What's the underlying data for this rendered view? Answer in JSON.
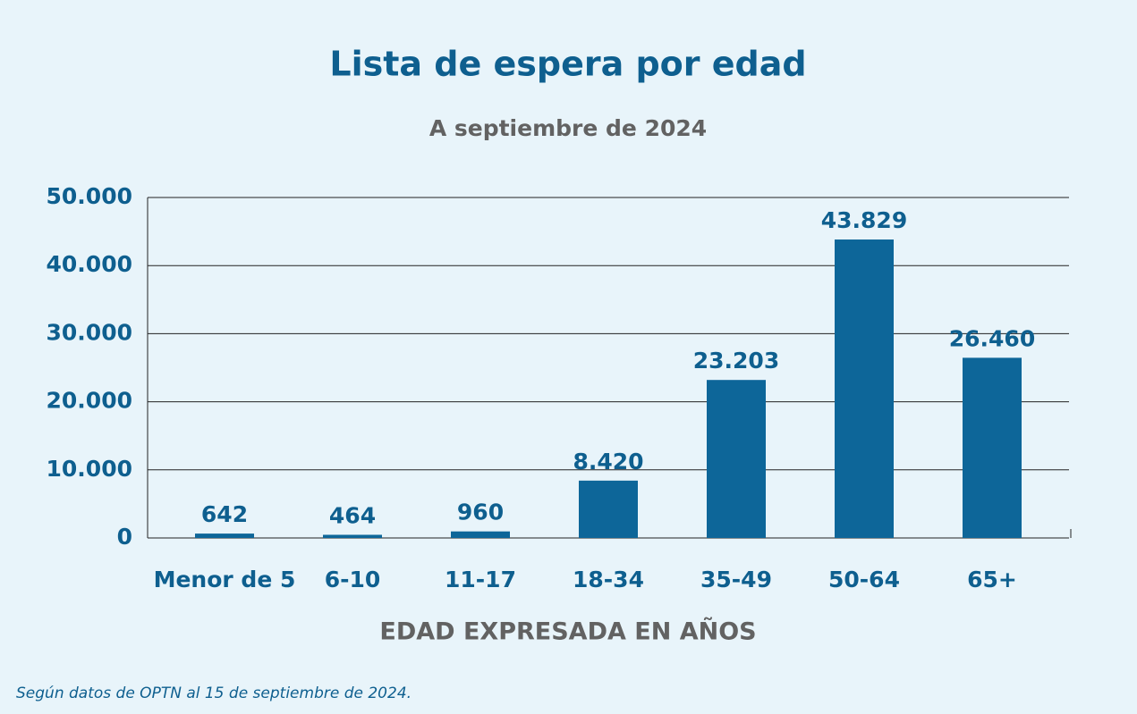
{
  "chart_data": {
    "type": "bar",
    "title": "Lista de espera por edad",
    "subtitle": "A septiembre de 2024",
    "x_label": "EDAD EXPRESADA EN AÑOS",
    "footnote": "Según datos de OPTN al 15 de septiembre de 2024.",
    "categories": [
      "Menor de 5",
      "6-10",
      "11-17",
      "18-34",
      "35-49",
      "50-64",
      "65+"
    ],
    "values": [
      642,
      464,
      960,
      8420,
      23203,
      43829,
      26460
    ],
    "value_labels": [
      "642",
      "464",
      "960",
      "8.420",
      "23.203",
      "43.829",
      "26.460"
    ],
    "color": "#0d6699",
    "ylim": [
      0,
      50000
    ],
    "yticks": [
      0,
      {
        "value": 10000,
        "label": "10.000"
      },
      {
        "value": 20000,
        "label": "20.000"
      },
      {
        "value": 30000,
        "label": "30.000"
      },
      {
        "value": 40000,
        "label": "40.000"
      },
      {
        "value": 50000,
        "label": "50.000"
      }
    ],
    "grid": true
  }
}
